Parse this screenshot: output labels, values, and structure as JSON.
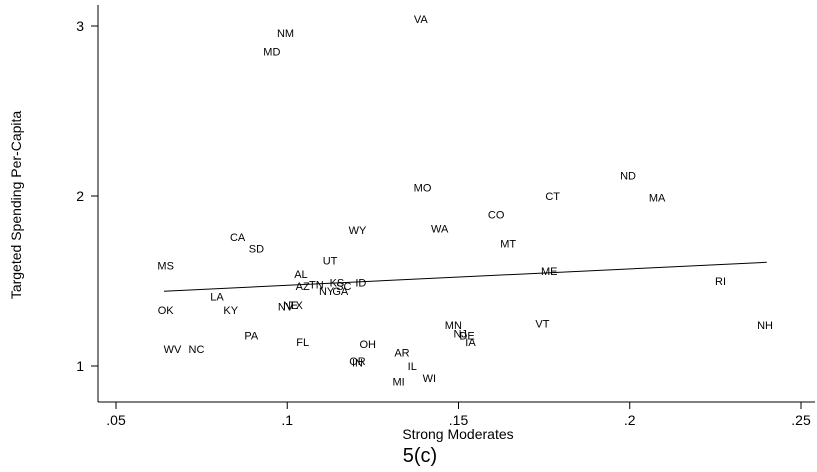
{
  "chart_data": {
    "type": "scatter",
    "title": "",
    "caption": "5(c)",
    "xlabel": "Strong Moderates",
    "ylabel": "Targeted Spending Per-Capita",
    "xlim": [
      0.05,
      0.25
    ],
    "ylim": [
      0.82,
      3.12
    ],
    "xticks": [
      {
        "value": 0.05,
        "label": ".05"
      },
      {
        "value": 0.1,
        "label": ".1"
      },
      {
        "value": 0.15,
        "label": ".15"
      },
      {
        "value": 0.2,
        "label": ".2"
      },
      {
        "value": 0.25,
        "label": ".25"
      }
    ],
    "yticks": [
      {
        "value": 1,
        "label": "1"
      },
      {
        "value": 2,
        "label": "2"
      },
      {
        "value": 3,
        "label": "3"
      }
    ],
    "grid": false,
    "points": [
      {
        "label": "VA",
        "x": 0.139,
        "y": 3.04
      },
      {
        "label": "NM",
        "x": 0.0995,
        "y": 2.96
      },
      {
        "label": "MD",
        "x": 0.0955,
        "y": 2.85
      },
      {
        "label": "ND",
        "x": 0.1995,
        "y": 2.12
      },
      {
        "label": "MO",
        "x": 0.1395,
        "y": 2.05
      },
      {
        "label": "CT",
        "x": 0.1775,
        "y": 2.0
      },
      {
        "label": "MA",
        "x": 0.208,
        "y": 1.99
      },
      {
        "label": "CO",
        "x": 0.161,
        "y": 1.89
      },
      {
        "label": "WA",
        "x": 0.1445,
        "y": 1.81
      },
      {
        "label": "WY",
        "x": 0.1205,
        "y": 1.8
      },
      {
        "label": "CA",
        "x": 0.0855,
        "y": 1.76
      },
      {
        "label": "MT",
        "x": 0.1645,
        "y": 1.72
      },
      {
        "label": "SD",
        "x": 0.091,
        "y": 1.69
      },
      {
        "label": "UT",
        "x": 0.1125,
        "y": 1.62
      },
      {
        "label": "MS",
        "x": 0.0645,
        "y": 1.59
      },
      {
        "label": "ME",
        "x": 0.1765,
        "y": 1.56
      },
      {
        "label": "AL",
        "x": 0.104,
        "y": 1.54
      },
      {
        "label": "RI",
        "x": 0.2265,
        "y": 1.5
      },
      {
        "label": "ID",
        "x": 0.1215,
        "y": 1.49
      },
      {
        "label": "KS",
        "x": 0.1145,
        "y": 1.49
      },
      {
        "label": "SC",
        "x": 0.1165,
        "y": 1.47
      },
      {
        "label": "TN",
        "x": 0.1085,
        "y": 1.48
      },
      {
        "label": "AZ",
        "x": 0.1045,
        "y": 1.47
      },
      {
        "label": "NY",
        "x": 0.1115,
        "y": 1.44
      },
      {
        "label": "GA",
        "x": 0.1155,
        "y": 1.44
      },
      {
        "label": "LA",
        "x": 0.0795,
        "y": 1.41
      },
      {
        "label": "NV",
        "x": 0.0995,
        "y": 1.35
      },
      {
        "label": "NE",
        "x": 0.101,
        "y": 1.36
      },
      {
        "label": "TX",
        "x": 0.1025,
        "y": 1.36
      },
      {
        "label": "OK",
        "x": 0.0645,
        "y": 1.33
      },
      {
        "label": "KY",
        "x": 0.0835,
        "y": 1.33
      },
      {
        "label": "VT",
        "x": 0.1745,
        "y": 1.25
      },
      {
        "label": "NH",
        "x": 0.2395,
        "y": 1.24
      },
      {
        "label": "MN",
        "x": 0.1485,
        "y": 1.24
      },
      {
        "label": "NJ",
        "x": 0.1505,
        "y": 1.19
      },
      {
        "label": "DE",
        "x": 0.1525,
        "y": 1.18
      },
      {
        "label": "PA",
        "x": 0.0895,
        "y": 1.18
      },
      {
        "label": "IA",
        "x": 0.1535,
        "y": 1.14
      },
      {
        "label": "FL",
        "x": 0.1045,
        "y": 1.14
      },
      {
        "label": "OH",
        "x": 0.1235,
        "y": 1.13
      },
      {
        "label": "NC",
        "x": 0.0735,
        "y": 1.1
      },
      {
        "label": "WV",
        "x": 0.0665,
        "y": 1.1
      },
      {
        "label": "AR",
        "x": 0.1335,
        "y": 1.08
      },
      {
        "label": "OR",
        "x": 0.1205,
        "y": 1.03
      },
      {
        "label": "IN",
        "x": 0.1205,
        "y": 1.02
      },
      {
        "label": "IL",
        "x": 0.1365,
        "y": 1.0
      },
      {
        "label": "WI",
        "x": 0.1415,
        "y": 0.93
      },
      {
        "label": "MI",
        "x": 0.1325,
        "y": 0.91
      }
    ],
    "fit_line": {
      "x": [
        0.064,
        0.24
      ],
      "y": [
        1.44,
        1.61
      ]
    }
  }
}
